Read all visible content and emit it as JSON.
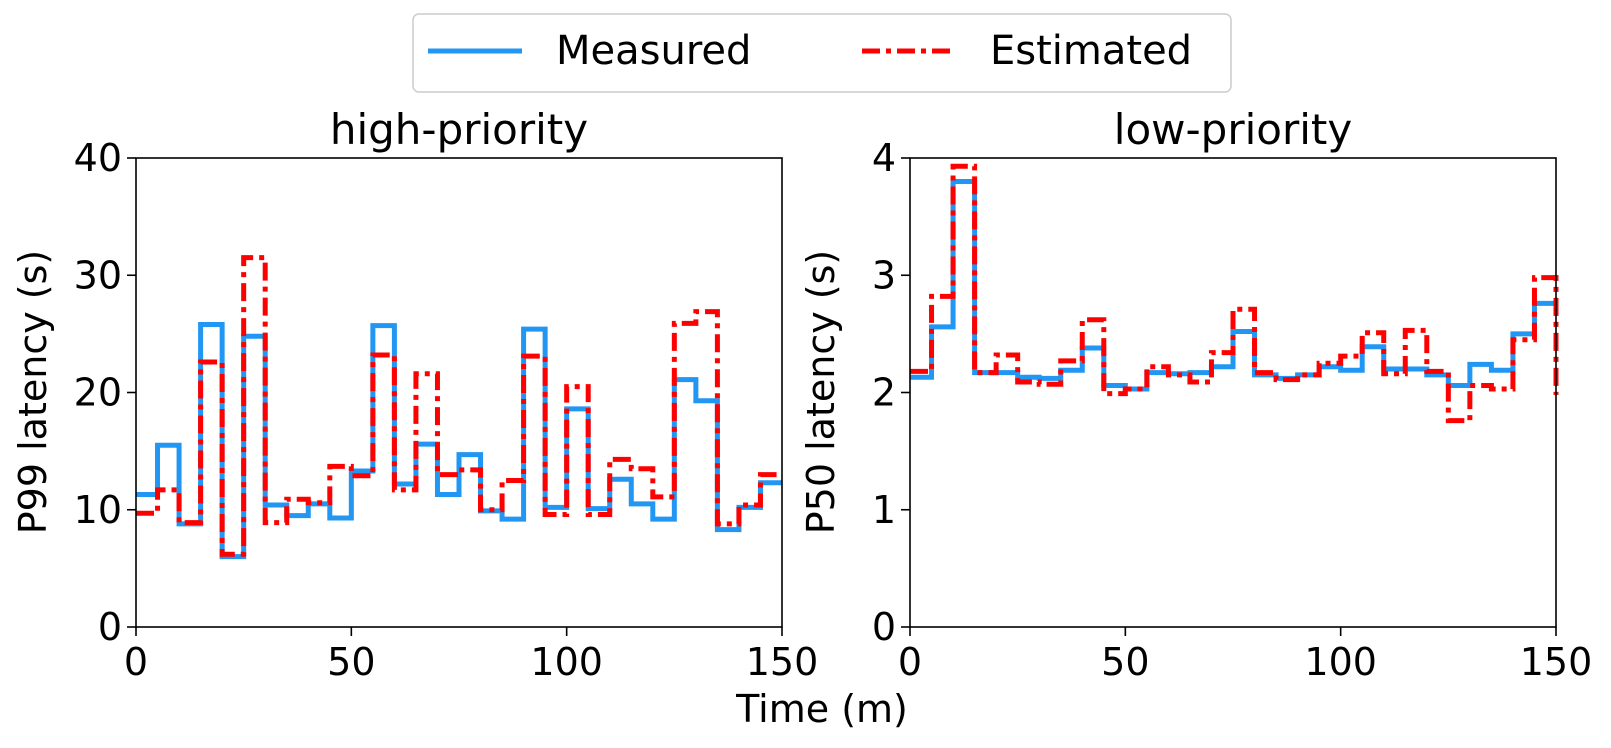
{
  "colors": {
    "measured": "#2196f3",
    "estimated": "#ff0000"
  },
  "legend": {
    "items": [
      {
        "label": "Measured",
        "series": "measured"
      },
      {
        "label": "Estimated",
        "series": "estimated"
      }
    ]
  },
  "shared_xlabel": "Time (m)",
  "chart_data": [
    {
      "type": "line",
      "drawstyle": "steps-post",
      "title": "high-priority",
      "xlabel": "Time (m)",
      "ylabel": "P99 latency (s)",
      "xlim": [
        0,
        150
      ],
      "ylim": [
        0,
        40
      ],
      "xticks": [
        0,
        50,
        100,
        150
      ],
      "yticks": [
        0,
        10,
        20,
        30,
        40
      ],
      "x": [
        0,
        5,
        10,
        15,
        20,
        25,
        30,
        35,
        40,
        45,
        50,
        55,
        60,
        65,
        70,
        75,
        80,
        85,
        90,
        95,
        100,
        105,
        110,
        115,
        120,
        125,
        130,
        135,
        140,
        145,
        150
      ],
      "series": [
        {
          "name": "Measured",
          "key": "measured",
          "values": [
            11.3,
            15.5,
            8.8,
            25.8,
            6.0,
            24.8,
            10.4,
            9.5,
            10.5,
            9.3,
            13.3,
            25.7,
            12.2,
            15.6,
            11.3,
            14.7,
            9.9,
            9.2,
            25.4,
            10.2,
            18.6,
            10.1,
            12.6,
            10.5,
            9.2,
            21.1,
            19.3,
            8.3,
            10.2,
            12.3,
            12.3
          ]
        },
        {
          "name": "Estimated",
          "key": "estimated",
          "values": [
            9.7,
            11.7,
            8.9,
            22.6,
            6.2,
            31.5,
            8.9,
            10.9,
            10.6,
            13.7,
            12.9,
            23.2,
            11.7,
            21.6,
            13.0,
            13.4,
            10.0,
            12.5,
            23.1,
            9.6,
            20.5,
            9.6,
            14.3,
            13.5,
            11.1,
            25.9,
            26.9,
            8.8,
            10.4,
            13.0,
            13.0
          ]
        }
      ]
    },
    {
      "type": "line",
      "drawstyle": "steps-post",
      "title": "low-priority",
      "xlabel": "Time (m)",
      "ylabel": "P50 latency (s)",
      "xlim": [
        0,
        150
      ],
      "ylim": [
        0,
        4
      ],
      "xticks": [
        0,
        50,
        100,
        150
      ],
      "yticks": [
        0,
        1,
        2,
        3,
        4
      ],
      "x": [
        0,
        5,
        10,
        15,
        20,
        25,
        30,
        35,
        40,
        45,
        50,
        55,
        60,
        65,
        70,
        75,
        80,
        85,
        90,
        95,
        100,
        105,
        110,
        115,
        120,
        125,
        130,
        135,
        140,
        145,
        150
      ],
      "series": [
        {
          "name": "Measured",
          "key": "measured",
          "values": [
            2.13,
            2.56,
            3.8,
            2.17,
            2.17,
            2.13,
            2.12,
            2.19,
            2.38,
            2.06,
            2.03,
            2.17,
            2.16,
            2.17,
            2.22,
            2.52,
            2.15,
            2.12,
            2.15,
            2.22,
            2.19,
            2.39,
            2.2,
            2.2,
            2.15,
            2.06,
            2.24,
            2.19,
            2.5,
            2.76,
            2.76
          ]
        },
        {
          "name": "Estimated",
          "key": "estimated",
          "values": [
            2.18,
            2.82,
            3.93,
            2.17,
            2.32,
            2.09,
            2.07,
            2.27,
            2.62,
            1.99,
            2.03,
            2.22,
            2.15,
            2.09,
            2.34,
            2.71,
            2.17,
            2.11,
            2.15,
            2.25,
            2.31,
            2.51,
            2.16,
            2.53,
            2.18,
            1.76,
            2.06,
            2.03,
            2.45,
            2.98,
            1.98
          ]
        }
      ]
    }
  ]
}
